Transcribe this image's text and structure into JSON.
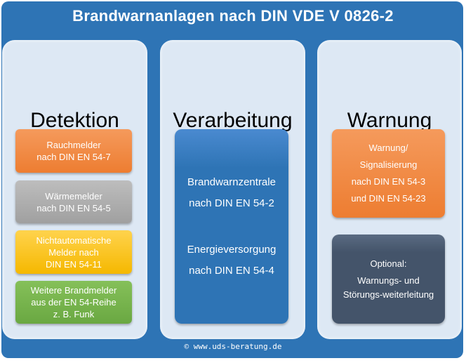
{
  "title": "Brandwarnanlagen nach DIN VDE V 0826-2",
  "columns": [
    {
      "heading": "Detektion",
      "boxes": [
        {
          "lines": [
            "Rauchmelder",
            "nach DIN EN 54-7"
          ],
          "color": "#ed7d31"
        },
        {
          "lines": [
            "Wärmemelder",
            "nach DIN EN 54-5"
          ],
          "color": "#a5a5a5"
        },
        {
          "lines": [
            "Nichtautomatische",
            "Melder nach",
            "DIN EN 54-11"
          ],
          "color": "#ffc000"
        },
        {
          "lines": [
            "Weitere Brandmelder",
            "aus der EN 54-Reihe",
            "z. B. Funk"
          ],
          "color": "#70ad47"
        }
      ]
    },
    {
      "heading": "Verarbeitung",
      "boxes": [
        {
          "lines": [
            "Brandwarnzentrale",
            "nach DIN EN 54-2",
            "Energieversorgung",
            "nach DIN EN 54-4"
          ],
          "color": "#2e74b5"
        }
      ]
    },
    {
      "heading": "Warnung",
      "boxes": [
        {
          "lines": [
            "Warnung/",
            "Signalisierung",
            "nach DIN EN 54-3",
            "und DIN EN 54-23"
          ],
          "color": "#ed7d31"
        },
        {
          "lines": [
            "Optional:",
            "Warnungs- und",
            "Störungs-weiterleitung"
          ],
          "color": "#44546a"
        }
      ]
    }
  ],
  "footer": "© www.uds-beratung.de"
}
